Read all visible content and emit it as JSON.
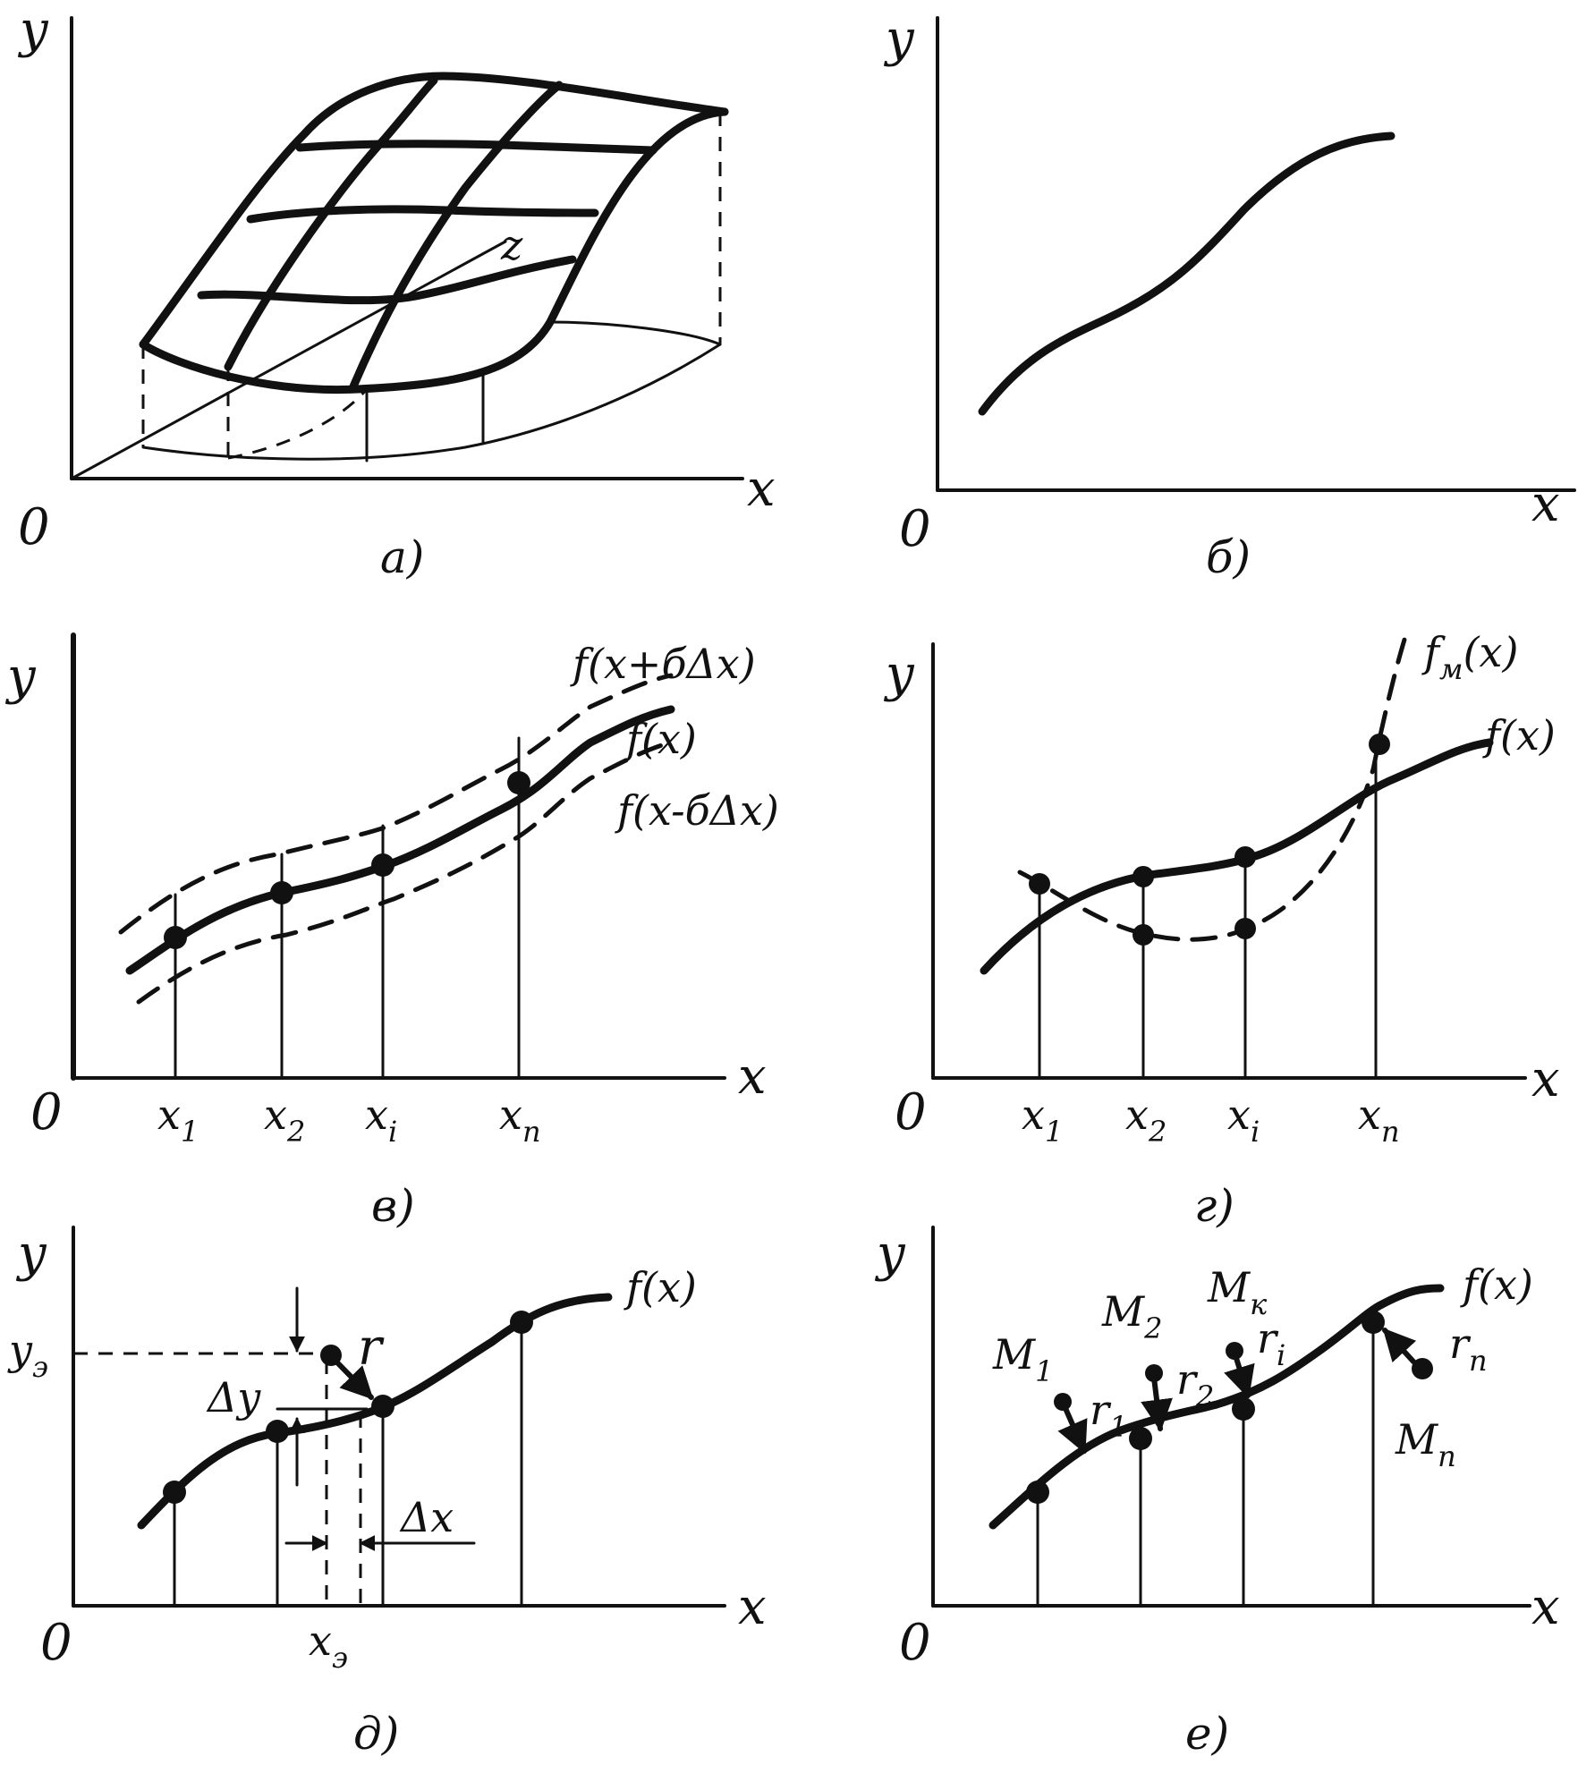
{
  "panels": {
    "a": {
      "caption": "а)",
      "y_label": "y",
      "x_label": "x",
      "z_label": "z",
      "origin_label": "0"
    },
    "b": {
      "caption": "б)",
      "y_label": "y",
      "x_label": "x",
      "origin_label": "0"
    },
    "v": {
      "caption": "в)",
      "y_label": "y",
      "x_label": "x",
      "origin_label": "0",
      "upper_curve_label": "f(x+бΔx)",
      "main_curve_label": "f(x)",
      "lower_curve_label": "f(x-бΔx)",
      "ticks": [
        {
          "base": "x",
          "sub": "1"
        },
        {
          "base": "x",
          "sub": "2"
        },
        {
          "base": "x",
          "sub": "i"
        },
        {
          "base": "x",
          "sub": "п"
        }
      ]
    },
    "g": {
      "caption": "г)",
      "y_label": "y",
      "x_label": "x",
      "origin_label": "0",
      "model_curve_label": {
        "base": "f",
        "sub": "м",
        "tail": "(x)"
      },
      "main_curve_label": "f(x)",
      "ticks": [
        {
          "base": "x",
          "sub": "1"
        },
        {
          "base": "x",
          "sub": "2"
        },
        {
          "base": "x",
          "sub": "i"
        },
        {
          "base": "x",
          "sub": "п"
        }
      ]
    },
    "d": {
      "caption": "д)",
      "y_label": "y",
      "x_label": "x",
      "origin_label": "0",
      "main_curve_label": "f(x)",
      "ye_label": {
        "base": "y",
        "sub": "э"
      },
      "xe_label": {
        "base": "x",
        "sub": "э"
      },
      "dy_label": "Δy",
      "dx_label": "Δx",
      "r_label": "r"
    },
    "e": {
      "caption": "е)",
      "y_label": "y",
      "x_label": "x",
      "origin_label": "0",
      "main_curve_label": "f(x)",
      "points": [
        {
          "base": "M",
          "sub": "1"
        },
        {
          "base": "M",
          "sub": "2"
        },
        {
          "base": "M",
          "sub": "к"
        },
        {
          "base": "M",
          "sub": "п"
        }
      ],
      "residuals": [
        {
          "base": "r",
          "sub": "1"
        },
        {
          "base": "r",
          "sub": "2"
        },
        {
          "base": "r",
          "sub": "i"
        },
        {
          "base": "r",
          "sub": "п"
        }
      ]
    }
  }
}
